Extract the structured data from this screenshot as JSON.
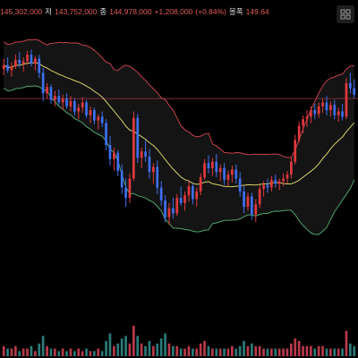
{
  "info": {
    "open_value": "145,302,000",
    "low_label": "저",
    "low_value": "143,752,000",
    "close_label": "종",
    "close_value": "144,978,000",
    "change": "+1,208,000",
    "change_pct": "(+0.84%)",
    "bandwidth_label": "볼폭",
    "bandwidth_value": "149.64"
  },
  "colors": {
    "background": "#000000",
    "up": "#e0393e",
    "down": "#3f6ff0",
    "mid_band": "#d6d16a",
    "upper_band": "#c2414a",
    "lower_band": "#4fa46a",
    "band_fill": "#141414",
    "volume_up": "#b8394a",
    "volume_down": "#2a7a78",
    "price_line": "#7a2a33"
  },
  "tool_icon": "chart-settings-icon",
  "chart_data": {
    "type": "candlestick",
    "indicator": "bollinger-bands",
    "grid": false,
    "candles": [
      [
        141.5,
        142.3,
        141.0,
        141.8
      ],
      [
        141.8,
        142.4,
        141.2,
        141.4
      ],
      [
        141.4,
        142.0,
        140.9,
        141.7
      ],
      [
        141.7,
        142.6,
        141.5,
        142.2
      ],
      [
        142.2,
        142.8,
        141.6,
        141.9
      ],
      [
        141.9,
        142.4,
        141.3,
        142.1
      ],
      [
        142.1,
        142.9,
        141.8,
        142.6
      ],
      [
        142.6,
        143.0,
        141.7,
        141.9
      ],
      [
        141.9,
        142.5,
        141.4,
        142.3
      ],
      [
        142.3,
        142.6,
        140.8,
        141.2
      ],
      [
        141.2,
        141.6,
        139.0,
        139.6
      ],
      [
        139.6,
        140.4,
        139.2,
        140.1
      ],
      [
        140.1,
        140.3,
        138.8,
        139.1
      ],
      [
        139.1,
        139.8,
        138.6,
        139.4
      ],
      [
        139.4,
        139.9,
        138.7,
        138.9
      ],
      [
        138.9,
        139.5,
        138.3,
        139.2
      ],
      [
        139.2,
        139.6,
        138.4,
        138.6
      ],
      [
        138.6,
        139.4,
        138.2,
        139.0
      ],
      [
        139.0,
        139.2,
        137.9,
        138.2
      ],
      [
        138.2,
        138.8,
        137.6,
        138.5
      ],
      [
        138.5,
        139.3,
        138.1,
        138.9
      ],
      [
        138.9,
        139.1,
        137.7,
        137.9
      ],
      [
        137.9,
        138.6,
        137.3,
        138.3
      ],
      [
        138.3,
        138.5,
        137.2,
        137.5
      ],
      [
        137.5,
        138.0,
        136.8,
        137.8
      ],
      [
        137.8,
        138.2,
        137.0,
        137.3
      ],
      [
        137.3,
        137.6,
        135.2,
        135.6
      ],
      [
        135.6,
        136.3,
        134.0,
        134.5
      ],
      [
        134.5,
        135.4,
        133.6,
        135.0
      ],
      [
        135.0,
        135.2,
        133.2,
        133.6
      ],
      [
        133.6,
        134.1,
        131.8,
        132.3
      ],
      [
        132.3,
        133.0,
        130.8,
        131.5
      ],
      [
        131.5,
        133.4,
        131.1,
        133.0
      ],
      [
        133.0,
        138.2,
        132.8,
        137.7
      ],
      [
        137.7,
        138.0,
        134.2,
        134.6
      ],
      [
        134.6,
        135.4,
        133.8,
        135.1
      ],
      [
        135.1,
        136.0,
        134.3,
        134.7
      ],
      [
        134.7,
        135.3,
        133.0,
        133.5
      ],
      [
        133.5,
        134.2,
        132.6,
        133.9
      ],
      [
        133.9,
        134.4,
        131.8,
        132.3
      ],
      [
        132.3,
        132.8,
        130.9,
        131.3
      ],
      [
        131.3,
        131.7,
        129.6,
        130.0
      ],
      [
        130.0,
        131.1,
        129.4,
        130.7
      ],
      [
        130.7,
        131.5,
        129.9,
        130.3
      ],
      [
        130.3,
        131.8,
        130.1,
        131.5
      ],
      [
        131.5,
        132.4,
        130.9,
        131.1
      ],
      [
        131.1,
        132.0,
        130.5,
        131.7
      ],
      [
        131.7,
        132.8,
        131.2,
        132.4
      ],
      [
        132.4,
        132.6,
        131.0,
        131.4
      ],
      [
        131.4,
        132.3,
        130.8,
        132.0
      ],
      [
        132.0,
        133.4,
        131.7,
        133.1
      ],
      [
        133.1,
        134.5,
        132.9,
        134.2
      ],
      [
        134.2,
        134.8,
        133.4,
        133.8
      ],
      [
        133.8,
        134.6,
        133.2,
        134.3
      ],
      [
        134.3,
        134.9,
        133.1,
        133.5
      ],
      [
        133.5,
        134.1,
        132.8,
        133.8
      ],
      [
        133.8,
        134.2,
        132.5,
        132.9
      ],
      [
        132.9,
        133.6,
        132.4,
        133.3
      ],
      [
        133.3,
        134.0,
        132.7,
        133.7
      ],
      [
        133.7,
        134.1,
        132.6,
        133.0
      ],
      [
        133.0,
        133.5,
        131.6,
        132.0
      ],
      [
        132.0,
        132.4,
        130.3,
        130.8
      ],
      [
        130.8,
        131.9,
        130.5,
        131.6
      ],
      [
        131.6,
        131.9,
        129.8,
        130.2
      ],
      [
        130.2,
        131.4,
        129.6,
        131.0
      ],
      [
        131.0,
        132.5,
        130.7,
        132.2
      ],
      [
        132.2,
        132.8,
        131.6,
        132.5
      ],
      [
        132.5,
        133.0,
        131.9,
        132.3
      ],
      [
        132.3,
        133.2,
        132.0,
        132.9
      ],
      [
        132.9,
        133.3,
        132.3,
        132.6
      ],
      [
        132.6,
        133.0,
        132.1,
        132.8
      ],
      [
        132.8,
        133.4,
        132.4,
        133.0
      ],
      [
        133.0,
        133.6,
        132.6,
        133.3
      ],
      [
        133.3,
        134.6,
        133.0,
        134.3
      ],
      [
        134.3,
        136.4,
        134.1,
        136.0
      ],
      [
        136.0,
        137.4,
        135.8,
        137.1
      ],
      [
        137.1,
        137.9,
        136.5,
        137.6
      ],
      [
        137.6,
        138.3,
        137.0,
        137.8
      ],
      [
        137.8,
        138.6,
        137.3,
        138.3
      ],
      [
        138.3,
        138.8,
        137.6,
        138.0
      ],
      [
        138.0,
        138.9,
        137.7,
        138.6
      ],
      [
        138.6,
        139.2,
        138.1,
        138.9
      ],
      [
        138.9,
        139.4,
        137.9,
        138.3
      ],
      [
        138.3,
        139.0,
        137.8,
        138.7
      ],
      [
        138.7,
        139.1,
        137.6,
        137.9
      ],
      [
        137.9,
        138.5,
        137.4,
        138.2
      ],
      [
        138.2,
        138.8,
        137.5,
        137.8
      ],
      [
        137.8,
        140.8,
        137.6,
        140.4
      ],
      [
        140.4,
        141.2,
        139.6,
        140.0
      ],
      [
        140.0,
        140.7,
        139.2,
        139.5
      ]
    ],
    "volume": [
      4,
      3,
      3,
      4,
      2,
      3,
      3,
      4,
      2,
      5,
      8,
      4,
      3,
      3,
      2,
      3,
      2,
      3,
      2,
      3,
      2,
      3,
      2,
      2,
      3,
      2,
      6,
      9,
      4,
      5,
      7,
      8,
      5,
      12,
      8,
      5,
      4,
      6,
      4,
      5,
      7,
      9,
      5,
      4,
      4,
      3,
      3,
      4,
      3,
      3,
      5,
      6,
      4,
      3,
      3,
      3,
      3,
      3,
      4,
      3,
      4,
      6,
      4,
      5,
      4,
      4,
      3,
      3,
      3,
      3,
      3,
      3,
      3,
      5,
      7,
      6,
      4,
      4,
      4,
      3,
      4,
      4,
      3,
      3,
      3,
      3,
      3,
      10,
      5,
      4
    ],
    "reference_price": 139.2,
    "period": 20,
    "multiplier": 2
  }
}
